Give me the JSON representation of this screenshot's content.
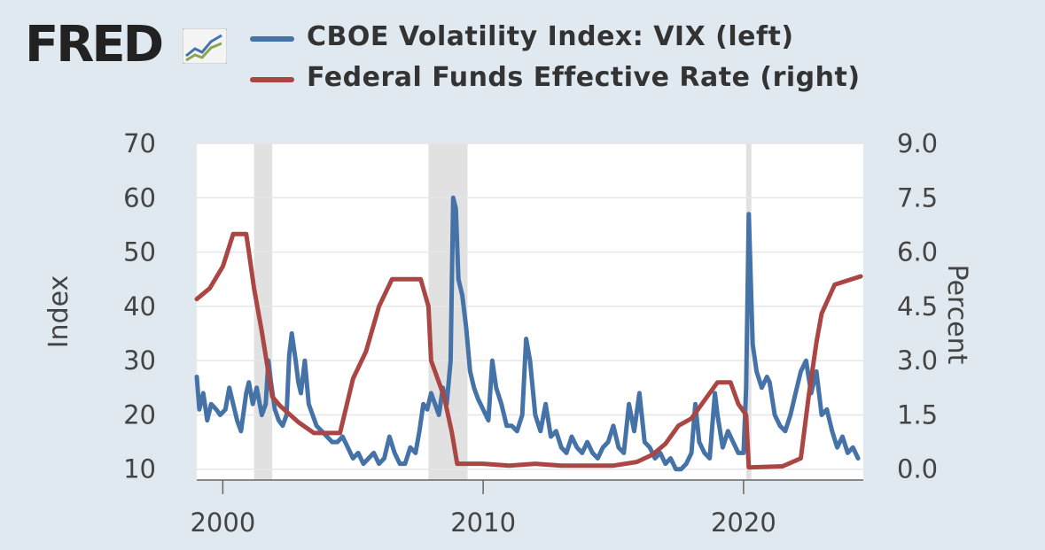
{
  "brand": {
    "name": "FRED"
  },
  "chart_data": {
    "type": "line",
    "title": "",
    "xlabel": "",
    "y_left_label": "Index",
    "y_right_label": "Percent",
    "x_range": [
      1999.0,
      2024.6
    ],
    "y_left_range": [
      8,
      70
    ],
    "y_right_range": [
      -0.3,
      9.0
    ],
    "x_ticks": [
      2000,
      2010,
      2020
    ],
    "x_tick_labels": [
      "2000",
      "2010",
      "2020"
    ],
    "y_left_ticks": [
      10,
      20,
      30,
      40,
      50,
      60,
      70
    ],
    "y_left_tick_labels": [
      "10",
      "20",
      "30",
      "40",
      "50",
      "60",
      "70"
    ],
    "y_right_ticks": [
      0.0,
      1.5,
      3.0,
      4.5,
      6.0,
      7.5,
      9.0
    ],
    "y_right_tick_labels": [
      "0.0",
      "1.5",
      "3.0",
      "4.5",
      "6.0",
      "7.5",
      "9.0"
    ],
    "grid": "horizontal",
    "legend_position": "top",
    "recessions": [
      [
        2001.2,
        2001.9
      ],
      [
        2007.9,
        2009.4
      ],
      [
        2020.1,
        2020.3
      ]
    ],
    "series": [
      {
        "name": "CBOE Volatility Index: VIX (left)",
        "axis": "left",
        "color": "#4572a7",
        "points": [
          [
            1999.0,
            27
          ],
          [
            1999.1,
            21
          ],
          [
            1999.25,
            24
          ],
          [
            1999.4,
            19
          ],
          [
            1999.55,
            22
          ],
          [
            1999.75,
            21
          ],
          [
            1999.9,
            20
          ],
          [
            2000.1,
            21
          ],
          [
            2000.25,
            25
          ],
          [
            2000.4,
            22
          ],
          [
            2000.55,
            19
          ],
          [
            2000.7,
            17
          ],
          [
            2000.9,
            24
          ],
          [
            2001.0,
            26
          ],
          [
            2001.15,
            22
          ],
          [
            2001.3,
            25
          ],
          [
            2001.5,
            20
          ],
          [
            2001.65,
            22
          ],
          [
            2001.75,
            30
          ],
          [
            2001.85,
            26
          ],
          [
            2002.0,
            21
          ],
          [
            2002.15,
            19
          ],
          [
            2002.3,
            18
          ],
          [
            2002.45,
            20
          ],
          [
            2002.55,
            31
          ],
          [
            2002.65,
            35
          ],
          [
            2002.8,
            30
          ],
          [
            2002.9,
            26
          ],
          [
            2003.0,
            24
          ],
          [
            2003.15,
            30
          ],
          [
            2003.3,
            22
          ],
          [
            2003.45,
            20
          ],
          [
            2003.6,
            18
          ],
          [
            2003.8,
            17
          ],
          [
            2004.0,
            16
          ],
          [
            2004.2,
            15
          ],
          [
            2004.4,
            15
          ],
          [
            2004.6,
            16
          ],
          [
            2004.8,
            14
          ],
          [
            2005.0,
            12
          ],
          [
            2005.2,
            13
          ],
          [
            2005.4,
            11
          ],
          [
            2005.6,
            12
          ],
          [
            2005.8,
            13
          ],
          [
            2006.0,
            11
          ],
          [
            2006.2,
            12
          ],
          [
            2006.4,
            16
          ],
          [
            2006.6,
            13
          ],
          [
            2006.8,
            11
          ],
          [
            2007.0,
            11
          ],
          [
            2007.2,
            14
          ],
          [
            2007.4,
            13
          ],
          [
            2007.55,
            17
          ],
          [
            2007.7,
            22
          ],
          [
            2007.85,
            21
          ],
          [
            2008.0,
            24
          ],
          [
            2008.15,
            22
          ],
          [
            2008.3,
            20
          ],
          [
            2008.45,
            25
          ],
          [
            2008.6,
            22
          ],
          [
            2008.75,
            30
          ],
          [
            2008.85,
            60
          ],
          [
            2008.95,
            58
          ],
          [
            2009.05,
            45
          ],
          [
            2009.2,
            42
          ],
          [
            2009.35,
            36
          ],
          [
            2009.5,
            28
          ],
          [
            2009.65,
            25
          ],
          [
            2009.8,
            23
          ],
          [
            2010.0,
            21
          ],
          [
            2010.2,
            19
          ],
          [
            2010.35,
            30
          ],
          [
            2010.5,
            25
          ],
          [
            2010.7,
            22
          ],
          [
            2010.9,
            18
          ],
          [
            2011.1,
            18
          ],
          [
            2011.3,
            17
          ],
          [
            2011.5,
            20
          ],
          [
            2011.65,
            34
          ],
          [
            2011.8,
            30
          ],
          [
            2012.0,
            20
          ],
          [
            2012.2,
            17
          ],
          [
            2012.4,
            22
          ],
          [
            2012.6,
            16
          ],
          [
            2012.8,
            17
          ],
          [
            2013.0,
            14
          ],
          [
            2013.2,
            13
          ],
          [
            2013.4,
            16
          ],
          [
            2013.6,
            14
          ],
          [
            2013.8,
            13
          ],
          [
            2014.0,
            15
          ],
          [
            2014.2,
            13
          ],
          [
            2014.4,
            12
          ],
          [
            2014.6,
            14
          ],
          [
            2014.8,
            15
          ],
          [
            2015.0,
            18
          ],
          [
            2015.2,
            14
          ],
          [
            2015.4,
            13
          ],
          [
            2015.6,
            22
          ],
          [
            2015.8,
            17
          ],
          [
            2016.0,
            24
          ],
          [
            2016.2,
            15
          ],
          [
            2016.4,
            14
          ],
          [
            2016.6,
            12
          ],
          [
            2016.8,
            13
          ],
          [
            2017.0,
            11
          ],
          [
            2017.2,
            12
          ],
          [
            2017.4,
            10
          ],
          [
            2017.6,
            10
          ],
          [
            2017.8,
            11
          ],
          [
            2018.0,
            13
          ],
          [
            2018.15,
            22
          ],
          [
            2018.3,
            15
          ],
          [
            2018.5,
            13
          ],
          [
            2018.7,
            12
          ],
          [
            2018.9,
            24
          ],
          [
            2019.0,
            20
          ],
          [
            2019.2,
            14
          ],
          [
            2019.4,
            17
          ],
          [
            2019.6,
            15
          ],
          [
            2019.8,
            13
          ],
          [
            2020.0,
            13
          ],
          [
            2020.1,
            25
          ],
          [
            2020.2,
            57
          ],
          [
            2020.35,
            33
          ],
          [
            2020.5,
            28
          ],
          [
            2020.7,
            25
          ],
          [
            2020.9,
            27
          ],
          [
            2021.0,
            26
          ],
          [
            2021.2,
            20
          ],
          [
            2021.4,
            18
          ],
          [
            2021.6,
            17
          ],
          [
            2021.8,
            20
          ],
          [
            2022.0,
            24
          ],
          [
            2022.2,
            28
          ],
          [
            2022.4,
            30
          ],
          [
            2022.6,
            24
          ],
          [
            2022.8,
            28
          ],
          [
            2023.0,
            20
          ],
          [
            2023.2,
            21
          ],
          [
            2023.4,
            17
          ],
          [
            2023.6,
            14
          ],
          [
            2023.8,
            16
          ],
          [
            2024.0,
            13
          ],
          [
            2024.2,
            14
          ],
          [
            2024.4,
            12
          ]
        ]
      },
      {
        "name": "Federal Funds Effective Rate (right)",
        "axis": "right",
        "color": "#aa4643",
        "points": [
          [
            1999.0,
            4.7
          ],
          [
            1999.5,
            5.0
          ],
          [
            2000.0,
            5.6
          ],
          [
            2000.4,
            6.5
          ],
          [
            2000.9,
            6.5
          ],
          [
            2001.0,
            6.0
          ],
          [
            2001.2,
            5.0
          ],
          [
            2001.5,
            3.8
          ],
          [
            2001.9,
            2.0
          ],
          [
            2002.2,
            1.75
          ],
          [
            2002.9,
            1.3
          ],
          [
            2003.0,
            1.25
          ],
          [
            2003.5,
            1.0
          ],
          [
            2004.5,
            1.0
          ],
          [
            2005.0,
            2.5
          ],
          [
            2005.5,
            3.25
          ],
          [
            2006.0,
            4.5
          ],
          [
            2006.5,
            5.25
          ],
          [
            2007.6,
            5.25
          ],
          [
            2007.9,
            4.5
          ],
          [
            2008.0,
            3.0
          ],
          [
            2008.5,
            2.0
          ],
          [
            2008.8,
            1.0
          ],
          [
            2009.0,
            0.15
          ],
          [
            2009.5,
            0.15
          ],
          [
            2010.0,
            0.15
          ],
          [
            2011.0,
            0.1
          ],
          [
            2012.0,
            0.15
          ],
          [
            2013.0,
            0.1
          ],
          [
            2014.0,
            0.1
          ],
          [
            2015.0,
            0.1
          ],
          [
            2015.9,
            0.2
          ],
          [
            2016.5,
            0.4
          ],
          [
            2017.0,
            0.7
          ],
          [
            2017.5,
            1.2
          ],
          [
            2018.0,
            1.4
          ],
          [
            2018.5,
            1.9
          ],
          [
            2019.0,
            2.4
          ],
          [
            2019.5,
            2.4
          ],
          [
            2019.8,
            1.8
          ],
          [
            2020.1,
            1.5
          ],
          [
            2020.2,
            0.05
          ],
          [
            2021.5,
            0.08
          ],
          [
            2022.2,
            0.3
          ],
          [
            2022.5,
            2.0
          ],
          [
            2022.8,
            3.5
          ],
          [
            2023.0,
            4.3
          ],
          [
            2023.5,
            5.1
          ],
          [
            2024.5,
            5.33
          ]
        ]
      }
    ]
  }
}
